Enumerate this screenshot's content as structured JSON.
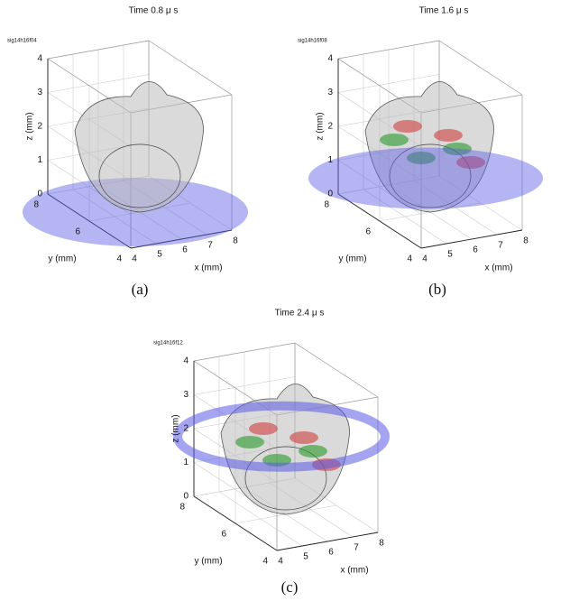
{
  "panels": [
    {
      "title": "Time 0.8 μ s",
      "run_id": "sig14h16f04",
      "caption": "(a)"
    },
    {
      "title": "Time 1.6 μ s",
      "run_id": "sig14h16f08",
      "caption": "(b)"
    },
    {
      "title": "Time 2.4 μ s",
      "run_id": "sig14h16f12",
      "caption": "(c)"
    }
  ],
  "axes": {
    "x_label": "x (mm)",
    "y_label": "y (mm)",
    "z_label": "z (mm)",
    "x_ticks": [
      4,
      5,
      6,
      7,
      8
    ],
    "y_ticks": [
      4,
      6,
      8
    ],
    "z_ticks": [
      0,
      1,
      2,
      3,
      4
    ]
  }
}
